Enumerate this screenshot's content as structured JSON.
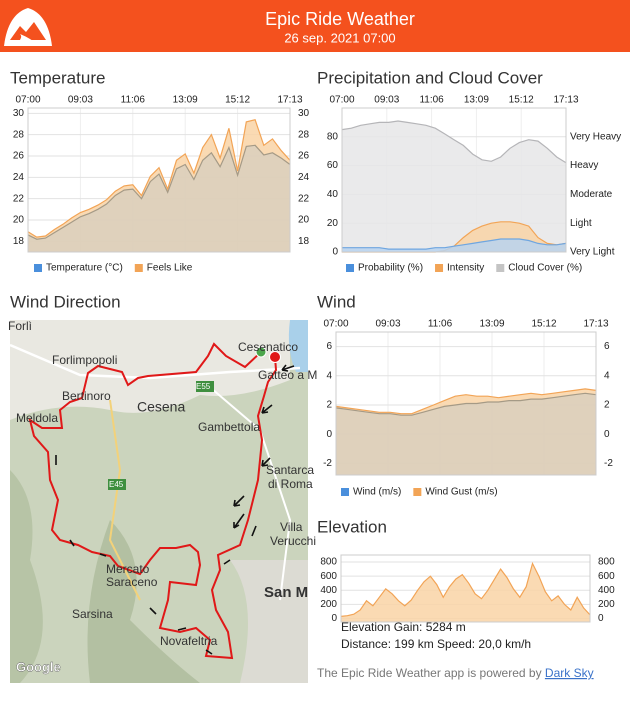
{
  "header": {
    "title": "Epic Ride Weather",
    "subtitle": "26 sep. 2021 07:00"
  },
  "charts": [
    {
      "type": "area",
      "title": "Temperature",
      "xticks": [
        "07:00",
        "09:03",
        "11:06",
        "13:09",
        "15:12",
        "17:13"
      ],
      "ylim": [
        17,
        30.5
      ],
      "yticks": [
        18,
        20,
        22,
        24,
        26,
        28,
        30
      ],
      "mirror_ticks": true,
      "grid": true,
      "series": [
        {
          "name": "Temperature (°C)",
          "color": "#4a8fdc",
          "fill": "#d9cfbd",
          "stroke": "#a59a86",
          "values": [
            18.6,
            18.2,
            18.3,
            18.8,
            19.3,
            19.8,
            20.3,
            20.6,
            21.0,
            21.5,
            22.3,
            22.8,
            22.9,
            22.0,
            23.6,
            24.3,
            22.6,
            24.8,
            25.2,
            23.8,
            25.6,
            26.3,
            25.0,
            26.8,
            24.2,
            26.9,
            27.0,
            26.1,
            26.3,
            25.8,
            25.2
          ]
        },
        {
          "name": "Feels Like",
          "color": "#f2a456",
          "fill": "#f9d3a6",
          "stroke": "#f2a456",
          "values": [
            18.9,
            18.4,
            18.5,
            19.1,
            19.6,
            20.2,
            20.7,
            21.0,
            21.4,
            21.9,
            22.7,
            23.2,
            23.3,
            22.3,
            24.1,
            24.9,
            22.9,
            25.6,
            26.2,
            24.4,
            26.8,
            28.0,
            25.8,
            28.6,
            24.6,
            29.2,
            29.4,
            27.0,
            27.6,
            26.5,
            25.6
          ]
        }
      ]
    },
    {
      "type": "area",
      "title": "Precipitation and Cloud Cover",
      "xticks": [
        "07:00",
        "09:03",
        "11:06",
        "13:09",
        "15:12",
        "17:13"
      ],
      "ylim": [
        0,
        100
      ],
      "yticks": [
        0,
        20,
        40,
        60,
        80
      ],
      "y2lim": [
        0,
        100
      ],
      "y2ticks": [
        {
          "value": 0,
          "label": "Very Light"
        },
        {
          "value": 20,
          "label": "Light"
        },
        {
          "value": 40,
          "label": "Moderate"
        },
        {
          "value": 60,
          "label": "Heavy"
        },
        {
          "value": 80,
          "label": "Very Heavy"
        }
      ],
      "grid": true,
      "series": [
        {
          "name": "Probability (%)",
          "color": "#4a8fdc",
          "fill": "#b9d4f0",
          "stroke": "#6fa6e0",
          "values": [
            3,
            3,
            3,
            3,
            3,
            2,
            2,
            2,
            2,
            2,
            3,
            3,
            4,
            5,
            6,
            7,
            8,
            9,
            9,
            9,
            8,
            6,
            5,
            5,
            6
          ]
        },
        {
          "name": "Intensity",
          "color": "#f2a456",
          "fill": "#f9d3a6",
          "stroke": "#f2a456",
          "values": [
            0,
            0,
            0,
            0,
            0,
            0,
            0,
            0,
            0,
            0,
            0,
            1,
            4,
            10,
            15,
            18,
            20,
            21,
            21,
            20,
            18,
            10,
            6,
            5,
            6
          ]
        },
        {
          "name": "Cloud Cover (%)",
          "color": "#c4c4c4",
          "fill": "#e6e6e8",
          "stroke": "#b5b5b8",
          "values": [
            85,
            86,
            88,
            89,
            90,
            90,
            91,
            90,
            89,
            88,
            86,
            82,
            78,
            74,
            68,
            64,
            63,
            66,
            72,
            76,
            78,
            77,
            72,
            66,
            62
          ]
        }
      ]
    },
    {
      "type": "area",
      "title": "Wind",
      "xticks": [
        "07:00",
        "09:03",
        "11:06",
        "13:09",
        "15:12",
        "17:13"
      ],
      "ylim": [
        -2.8,
        7
      ],
      "yticks": [
        -2,
        0,
        2,
        4,
        6
      ],
      "mirror_ticks": true,
      "grid": true,
      "series": [
        {
          "name": "Wind (m/s)",
          "color": "#4a8fdc",
          "fill": "#d9cfbd",
          "stroke": "#a59a86",
          "values": [
            1.8,
            1.7,
            1.6,
            1.5,
            1.4,
            1.4,
            1.3,
            1.3,
            1.5,
            1.7,
            1.9,
            2.0,
            2.1,
            2.1,
            2.2,
            2.2,
            2.3,
            2.3,
            2.4,
            2.4,
            2.5,
            2.6,
            2.7,
            2.8,
            2.7
          ]
        },
        {
          "name": "Wind Gust (m/s)",
          "color": "#f2a456",
          "fill": "#f9d3a6",
          "stroke": "#f2a456",
          "values": [
            1.9,
            1.8,
            1.7,
            1.6,
            1.5,
            1.5,
            1.4,
            1.4,
            1.7,
            2.0,
            2.3,
            2.6,
            2.7,
            2.6,
            2.6,
            2.5,
            2.6,
            2.7,
            2.8,
            2.7,
            2.8,
            2.9,
            3.0,
            3.1,
            3.0
          ]
        }
      ]
    },
    {
      "type": "area",
      "title": "Elevation",
      "ylim": [
        -50,
        900
      ],
      "yticks": [
        0,
        200,
        400,
        600,
        800
      ],
      "mirror_ticks": true,
      "grid": true,
      "series": [
        {
          "color": "#f2a456",
          "fill": "#f9d3a6",
          "stroke": "#f2a456",
          "values": [
            30,
            40,
            60,
            120,
            250,
            180,
            300,
            420,
            350,
            250,
            180,
            260,
            400,
            520,
            600,
            480,
            300,
            450,
            560,
            620,
            500,
            350,
            280,
            400,
            550,
            700,
            580,
            420,
            300,
            450,
            780,
            600,
            380,
            250,
            320,
            200,
            120,
            300,
            150,
            50
          ]
        }
      ]
    }
  ],
  "map": {
    "title": "Wind Direction",
    "labels": [
      "Forlì",
      "Forlimpopoli",
      "Bertinoro",
      "Meldola",
      "Cesena",
      "Cesenatico",
      "Gatteo a M",
      "Gambettola",
      "Santarca",
      "di Roma",
      "Villa",
      "Verucchi",
      "Mercato",
      "Saraceno",
      "Sarsina",
      "Novafeltria",
      "San M",
      "E55",
      "E45",
      "Google"
    ]
  },
  "stats": {
    "gain": "Elevation Gain: 5284 m",
    "distance": "Distance: 199 km  Speed: 20,0 km/h"
  },
  "footer": {
    "text": "The Epic Ride Weather app is powered by ",
    "link": "Dark Sky"
  }
}
